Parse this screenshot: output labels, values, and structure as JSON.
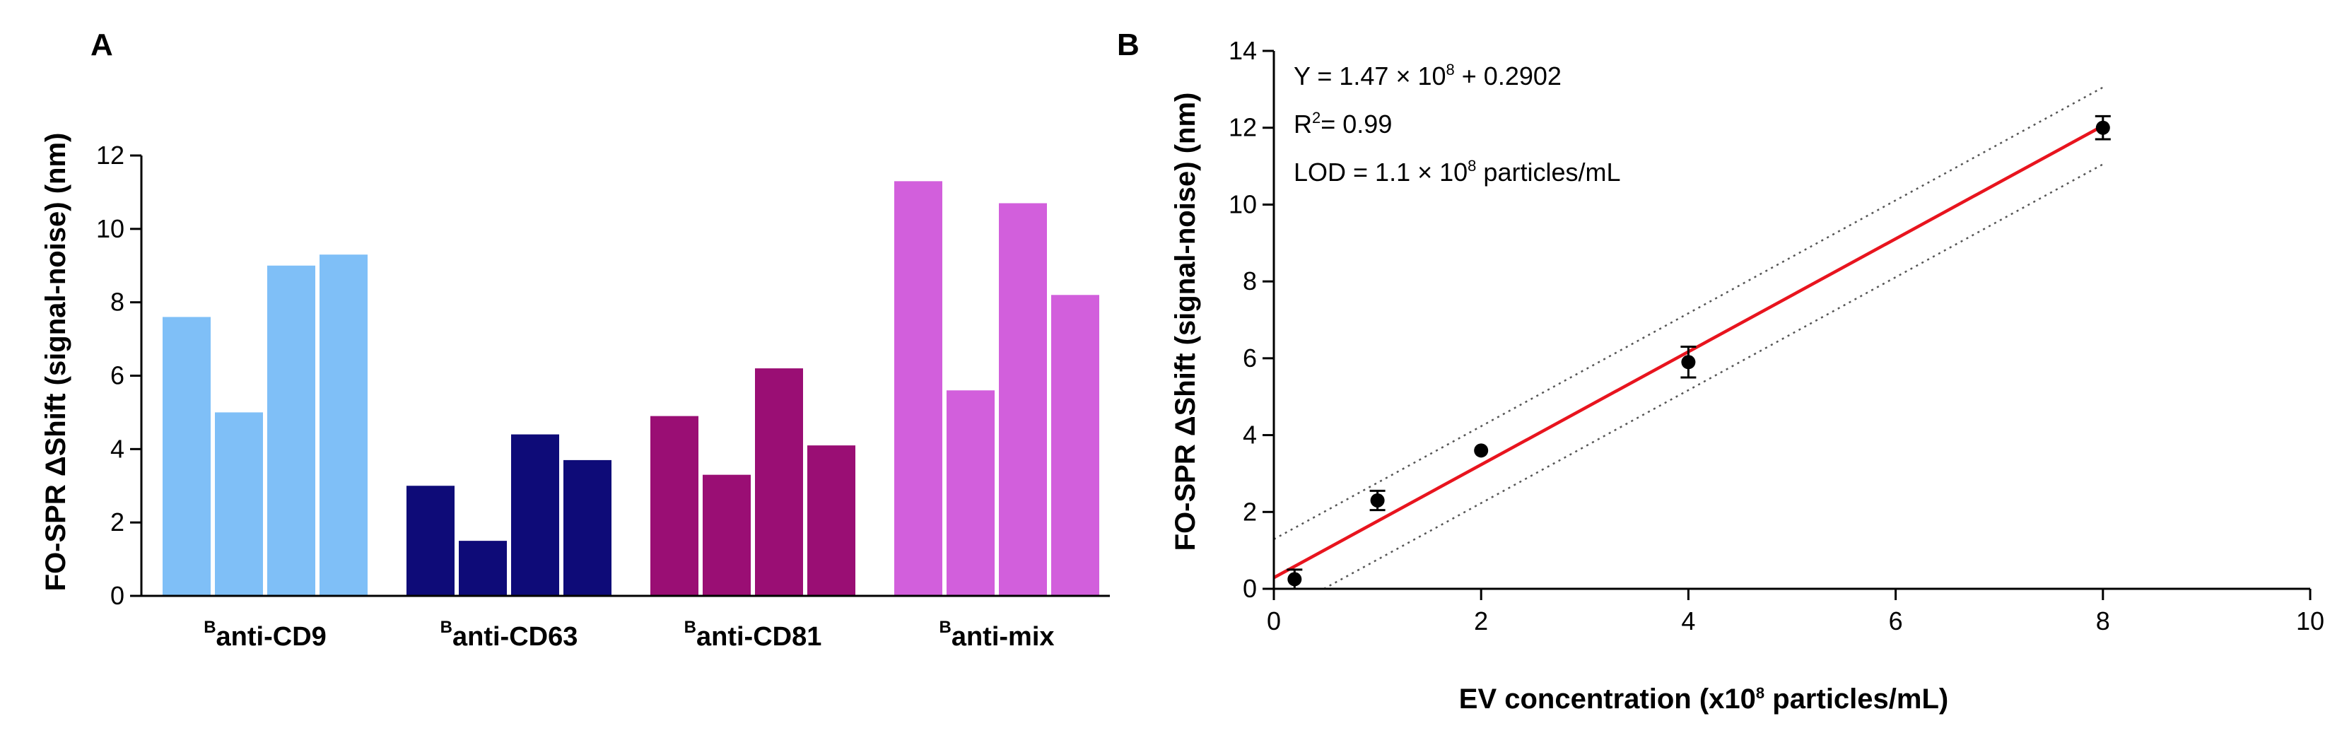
{
  "chart_data": [
    {
      "panel": "A",
      "type": "bar",
      "ylabel": "FO-SPR ΔShift (signal-noise) (nm)",
      "ylim": [
        0,
        12
      ],
      "yticks": [
        0,
        2,
        4,
        6,
        8,
        10,
        12
      ],
      "groups": [
        {
          "prefix": "B",
          "label": "anti-CD9",
          "color": "#7fbff7",
          "values": [
            7.6,
            5.0,
            9.0,
            9.3
          ]
        },
        {
          "prefix": "B",
          "label": "anti-CD63",
          "color": "#0e0b78",
          "values": [
            3.0,
            1.5,
            4.4,
            3.7
          ]
        },
        {
          "prefix": "B",
          "label": "anti-CD81",
          "color": "#9a0e74",
          "values": [
            4.9,
            3.3,
            6.2,
            4.1
          ]
        },
        {
          "prefix": "B",
          "label": "anti-mix",
          "color": "#d25fdc",
          "values": [
            11.3,
            5.6,
            10.7,
            8.2
          ]
        }
      ]
    },
    {
      "panel": "B",
      "type": "scatter",
      "ylabel": "FO-SPR ΔShift (signal-noise) (nm)",
      "xlabel_parts": [
        "EV concentration (x10",
        "8",
        " particles/mL)"
      ],
      "xlim": [
        0,
        10
      ],
      "ylim": [
        0,
        14
      ],
      "xticks": [
        0,
        2,
        4,
        6,
        8,
        10
      ],
      "yticks": [
        0,
        2,
        4,
        6,
        8,
        10,
        12,
        14
      ],
      "points": [
        {
          "x": 0.2,
          "y": 0.25,
          "err": 0.25
        },
        {
          "x": 1.0,
          "y": 2.3,
          "err": 0.25
        },
        {
          "x": 2.0,
          "y": 3.6,
          "err": 0.0
        },
        {
          "x": 4.0,
          "y": 5.9,
          "err": 0.4
        },
        {
          "x": 8.0,
          "y": 12.0,
          "err": 0.3
        }
      ],
      "fit": {
        "slope": 1.47,
        "intercept": 0.2902,
        "x_range": [
          0,
          8
        ],
        "color": "#e8141e"
      },
      "confidence_band": {
        "offset": 1.0,
        "x_range": [
          0,
          8
        ]
      },
      "annotations": [
        {
          "parts": [
            "Y = 1.47 × 10",
            "8",
            " + 0.2902"
          ]
        },
        {
          "parts": [
            "R",
            "2",
            "= 0.99"
          ]
        },
        {
          "parts": [
            "LOD = 1.1 × 10",
            "8",
            " particles/mL"
          ]
        }
      ]
    }
  ]
}
